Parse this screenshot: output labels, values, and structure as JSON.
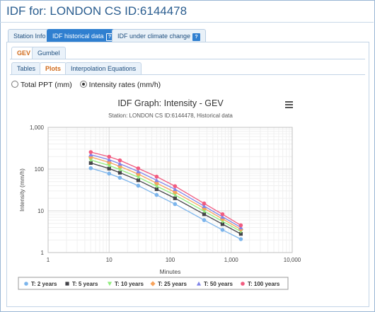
{
  "page": {
    "title": "IDF for: LONDON CS ID:6144478"
  },
  "tabs": [
    {
      "label": "Station Info",
      "help": false,
      "active": false
    },
    {
      "label": "IDF historical data",
      "help": true,
      "active": true
    },
    {
      "label": "IDF under climate change",
      "help": true,
      "active": false
    }
  ],
  "dist_tabs": [
    {
      "label": "GEV",
      "active": true
    },
    {
      "label": "Gumbel",
      "active": false
    }
  ],
  "view_tabs": [
    {
      "label": "Tables",
      "active": false
    },
    {
      "label": "Plots",
      "active": true
    },
    {
      "label": "Interpolation Equations",
      "active": false
    }
  ],
  "radios": [
    {
      "label": "Total PPT (mm)",
      "checked": false
    },
    {
      "label": "Intensity rates (mm/h)",
      "checked": true
    }
  ],
  "menu_icon": "hamburger-menu-icon",
  "chart_data": {
    "type": "line",
    "title": "IDF Graph: Intensity - GEV",
    "subtitle": "Station: LONDON CS ID:6144478, Historical data",
    "xlabel": "Minutes",
    "ylabel": "Intensity (mm/h)",
    "xscale": "log",
    "yscale": "log",
    "xlim": [
      1,
      10000
    ],
    "ylim": [
      1,
      1000
    ],
    "xticks": [
      "1",
      "10",
      "100",
      "1,000",
      "10,000"
    ],
    "yticks": [
      "1",
      "10",
      "100",
      "1,000"
    ],
    "grid": true,
    "legend_position": "bottom",
    "x": [
      5,
      10,
      15,
      30,
      60,
      120,
      360,
      720,
      1440
    ],
    "series": [
      {
        "name": "T: 2 years",
        "color": "#7cb5ec",
        "marker": "circle",
        "values": [
          105,
          78,
          62,
          40,
          24,
          14.5,
          6.0,
          3.5,
          2.1
        ]
      },
      {
        "name": "T: 5 years",
        "color": "#434348",
        "marker": "square",
        "values": [
          140,
          103,
          82,
          54,
          33,
          20,
          8.3,
          4.8,
          2.8
        ]
      },
      {
        "name": "T: 10 years",
        "color": "#90ed7d",
        "marker": "triangle-down",
        "values": [
          165,
          122,
          97,
          64,
          39,
          24,
          9.8,
          5.6,
          3.2
        ]
      },
      {
        "name": "T: 25 years",
        "color": "#f7a35c",
        "marker": "diamond",
        "values": [
          195,
          145,
          116,
          76,
          46,
          28,
          11.5,
          6.4,
          3.6
        ]
      },
      {
        "name": "T: 50 years",
        "color": "#8085e9",
        "marker": "triangle",
        "values": [
          222,
          168,
          134,
          88,
          54,
          33,
          13.0,
          7.2,
          4.0
        ]
      },
      {
        "name": "T: 100 years",
        "color": "#f15c80",
        "marker": "circle",
        "values": [
          255,
          198,
          162,
          104,
          66,
          39,
          15.0,
          8.3,
          4.5
        ]
      }
    ]
  }
}
